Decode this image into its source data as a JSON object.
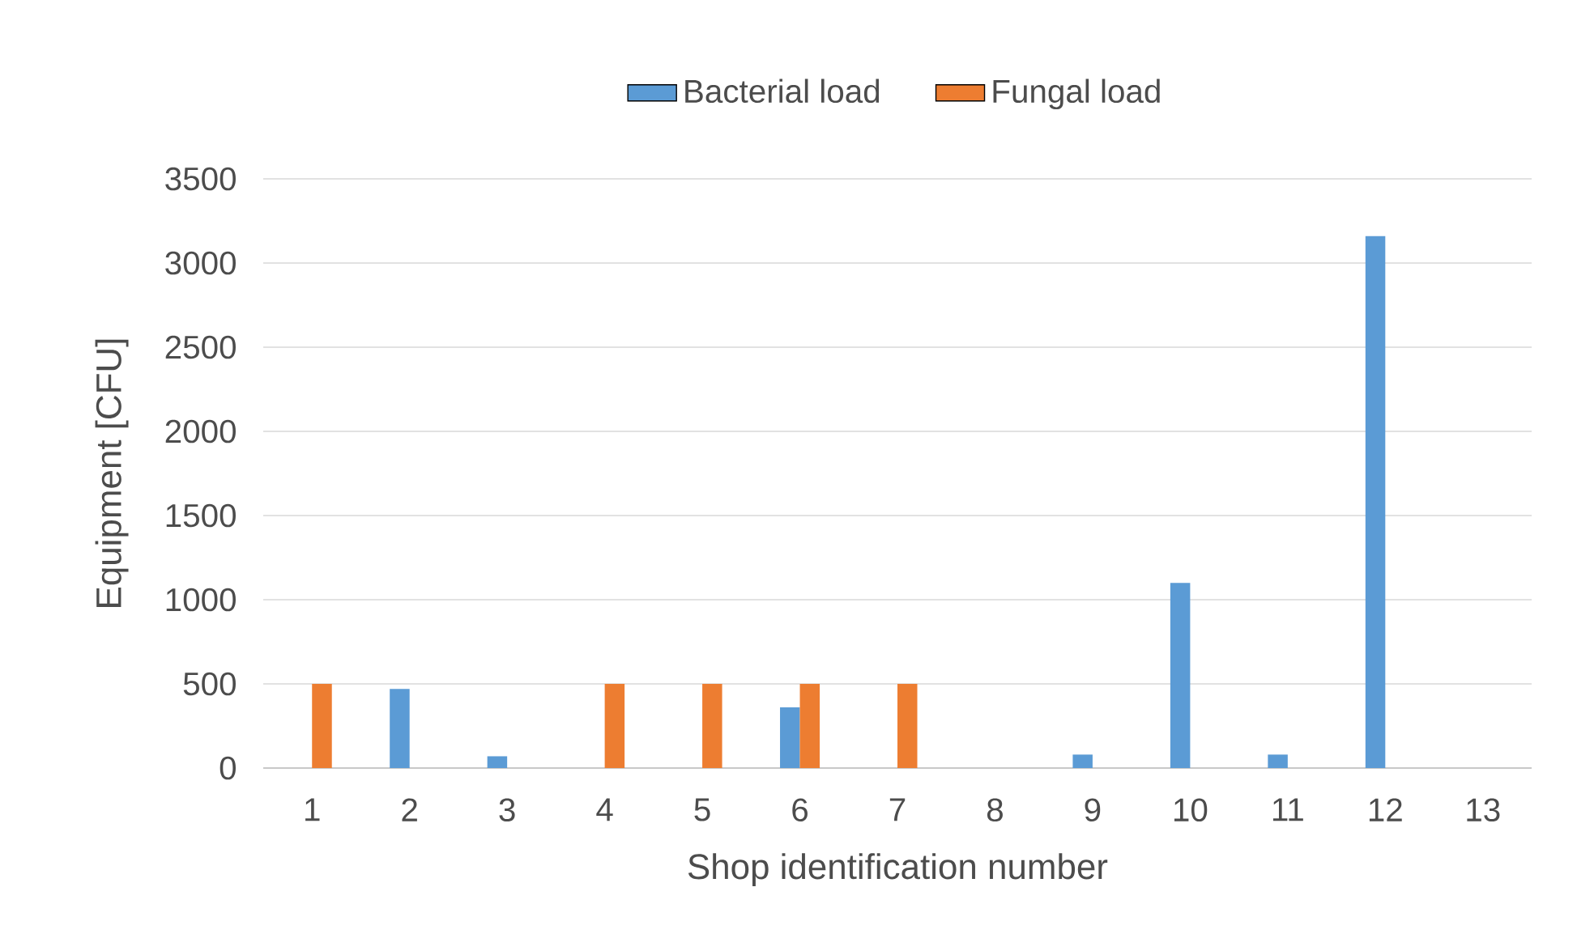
{
  "chart_data": {
    "type": "bar",
    "xlabel": "Shop identification number",
    "ylabel": "Equipment [CFU]",
    "categories": [
      "1",
      "2",
      "3",
      "4",
      "5",
      "6",
      "7",
      "8",
      "9",
      "10",
      "11",
      "12",
      "13"
    ],
    "series": [
      {
        "name": "Bacterial load",
        "color": "#5b9bd5",
        "values": [
          0,
          470,
          70,
          0,
          0,
          360,
          0,
          0,
          80,
          1100,
          80,
          3160,
          0
        ]
      },
      {
        "name": "Fungal load",
        "color": "#ed7d31",
        "values": [
          500,
          0,
          0,
          500,
          500,
          500,
          500,
          0,
          0,
          0,
          0,
          0,
          0
        ]
      }
    ],
    "ylim": [
      0,
      3500
    ],
    "yticks": [
      0,
      500,
      1000,
      1500,
      2000,
      2500,
      3000,
      3500
    ],
    "grid": "y",
    "legend": "top"
  }
}
